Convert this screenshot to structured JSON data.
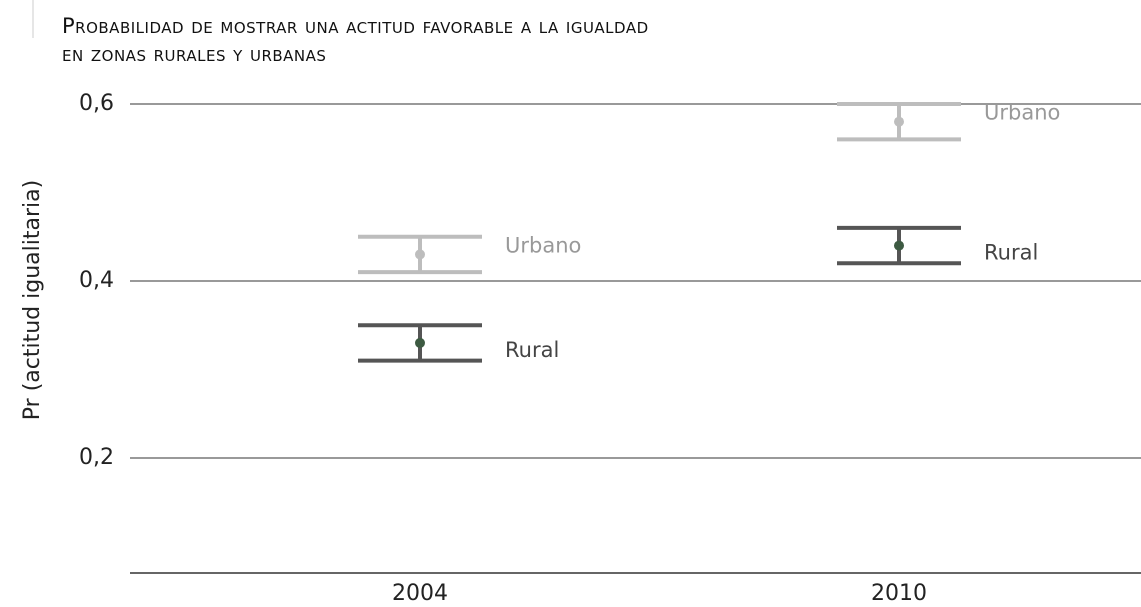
{
  "chart_data": {
    "type": "errorbar",
    "title": [
      "Probabilidad de mostrar una actitud favorable a la igualdad",
      "en zonas rurales y urbanas"
    ],
    "y_label": "Pr (actitud igualitaria)",
    "categories": [
      "2004",
      "2010"
    ],
    "series": [
      {
        "name": "Urbano",
        "color": "#bdbdbd",
        "values": [
          0.43,
          0.58
        ],
        "errors": [
          0.02,
          0.02
        ]
      },
      {
        "name": "Rural",
        "color": "#555555",
        "values": [
          0.33,
          0.44
        ],
        "errors": [
          0.02,
          0.02
        ]
      }
    ],
    "ylim": [
      0.07,
      0.6
    ],
    "yticks": [
      {
        "value": 0.2,
        "label": "0,2"
      },
      {
        "value": 0.4,
        "label": "0,4"
      },
      {
        "value": 0.6,
        "label": "0,6"
      }
    ],
    "grid": true
  }
}
